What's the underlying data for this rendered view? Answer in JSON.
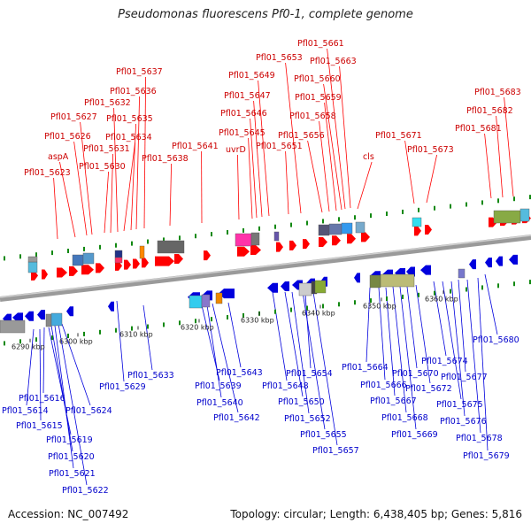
{
  "title": "Pseudomonas fluorescens Pf0-1, complete genome",
  "footer": {
    "accession": "Accession: NC_007492",
    "topology": "Topology: circular; Length: 6,438,405 bp; Genes: 5,816"
  },
  "colors": {
    "forward": "#ff0000",
    "reverse": "#0000dd",
    "forward_label": "#cc0000",
    "reverse_label": "#0000cc",
    "backbone": "#888888",
    "tick": "#118811"
  },
  "scale_ticks": [
    "6290 kbp",
    "6300 kbp",
    "6310 kbp",
    "6320 kbp",
    "6330 kbp",
    "6340 kbp",
    "6350 kbp",
    "6360 kbp"
  ],
  "forward_labels": [
    "Pfl01_5623",
    "aspA",
    "Pfl01_5626",
    "Pfl01_5627",
    "Pfl01_5630",
    "Pfl01_5631",
    "Pfl01_5632",
    "Pfl01_5634",
    "Pfl01_5635",
    "Pfl01_5636",
    "Pfl01_5637",
    "Pfl01_5638",
    "Pfl01_5641",
    "uvrD",
    "Pfl01_5645",
    "Pfl01_5646",
    "Pfl01_5647",
    "Pfl01_5649",
    "Pfl01_5651",
    "Pfl01_5653",
    "Pfl01_5656",
    "Pfl01_5658",
    "Pfl01_5659",
    "Pfl01_5660",
    "Pfl01_5661",
    "Pfl01_5663",
    "cls",
    "Pfl01_5671",
    "Pfl01_5673",
    "Pfl01_5681",
    "Pfl01_5682",
    "Pfl01_5683"
  ],
  "reverse_labels": [
    "Pfl01_5614",
    "Pfl01_5615",
    "Pfl01_5616",
    "Pfl01_5619",
    "Pfl01_5620",
    "Pfl01_5621",
    "Pfl01_5622",
    "Pfl01_5624",
    "Pfl01_5629",
    "Pfl01_5633",
    "Pfl01_5639",
    "Pfl01_5640",
    "Pfl01_5642",
    "Pfl01_5643",
    "Pfl01_5648",
    "Pfl01_5650",
    "Pfl01_5652",
    "Pfl01_5654",
    "Pfl01_5655",
    "Pfl01_5657",
    "Pfl01_5664",
    "Pfl01_5666",
    "Pfl01_5667",
    "Pfl01_5668",
    "Pfl01_5669",
    "Pfl01_5670",
    "Pfl01_5672",
    "Pfl01_5674",
    "Pfl01_5675",
    "Pfl01_5676",
    "Pfl01_5677",
    "Pfl01_5678",
    "Pfl01_5679",
    "Pfl01_5680"
  ]
}
